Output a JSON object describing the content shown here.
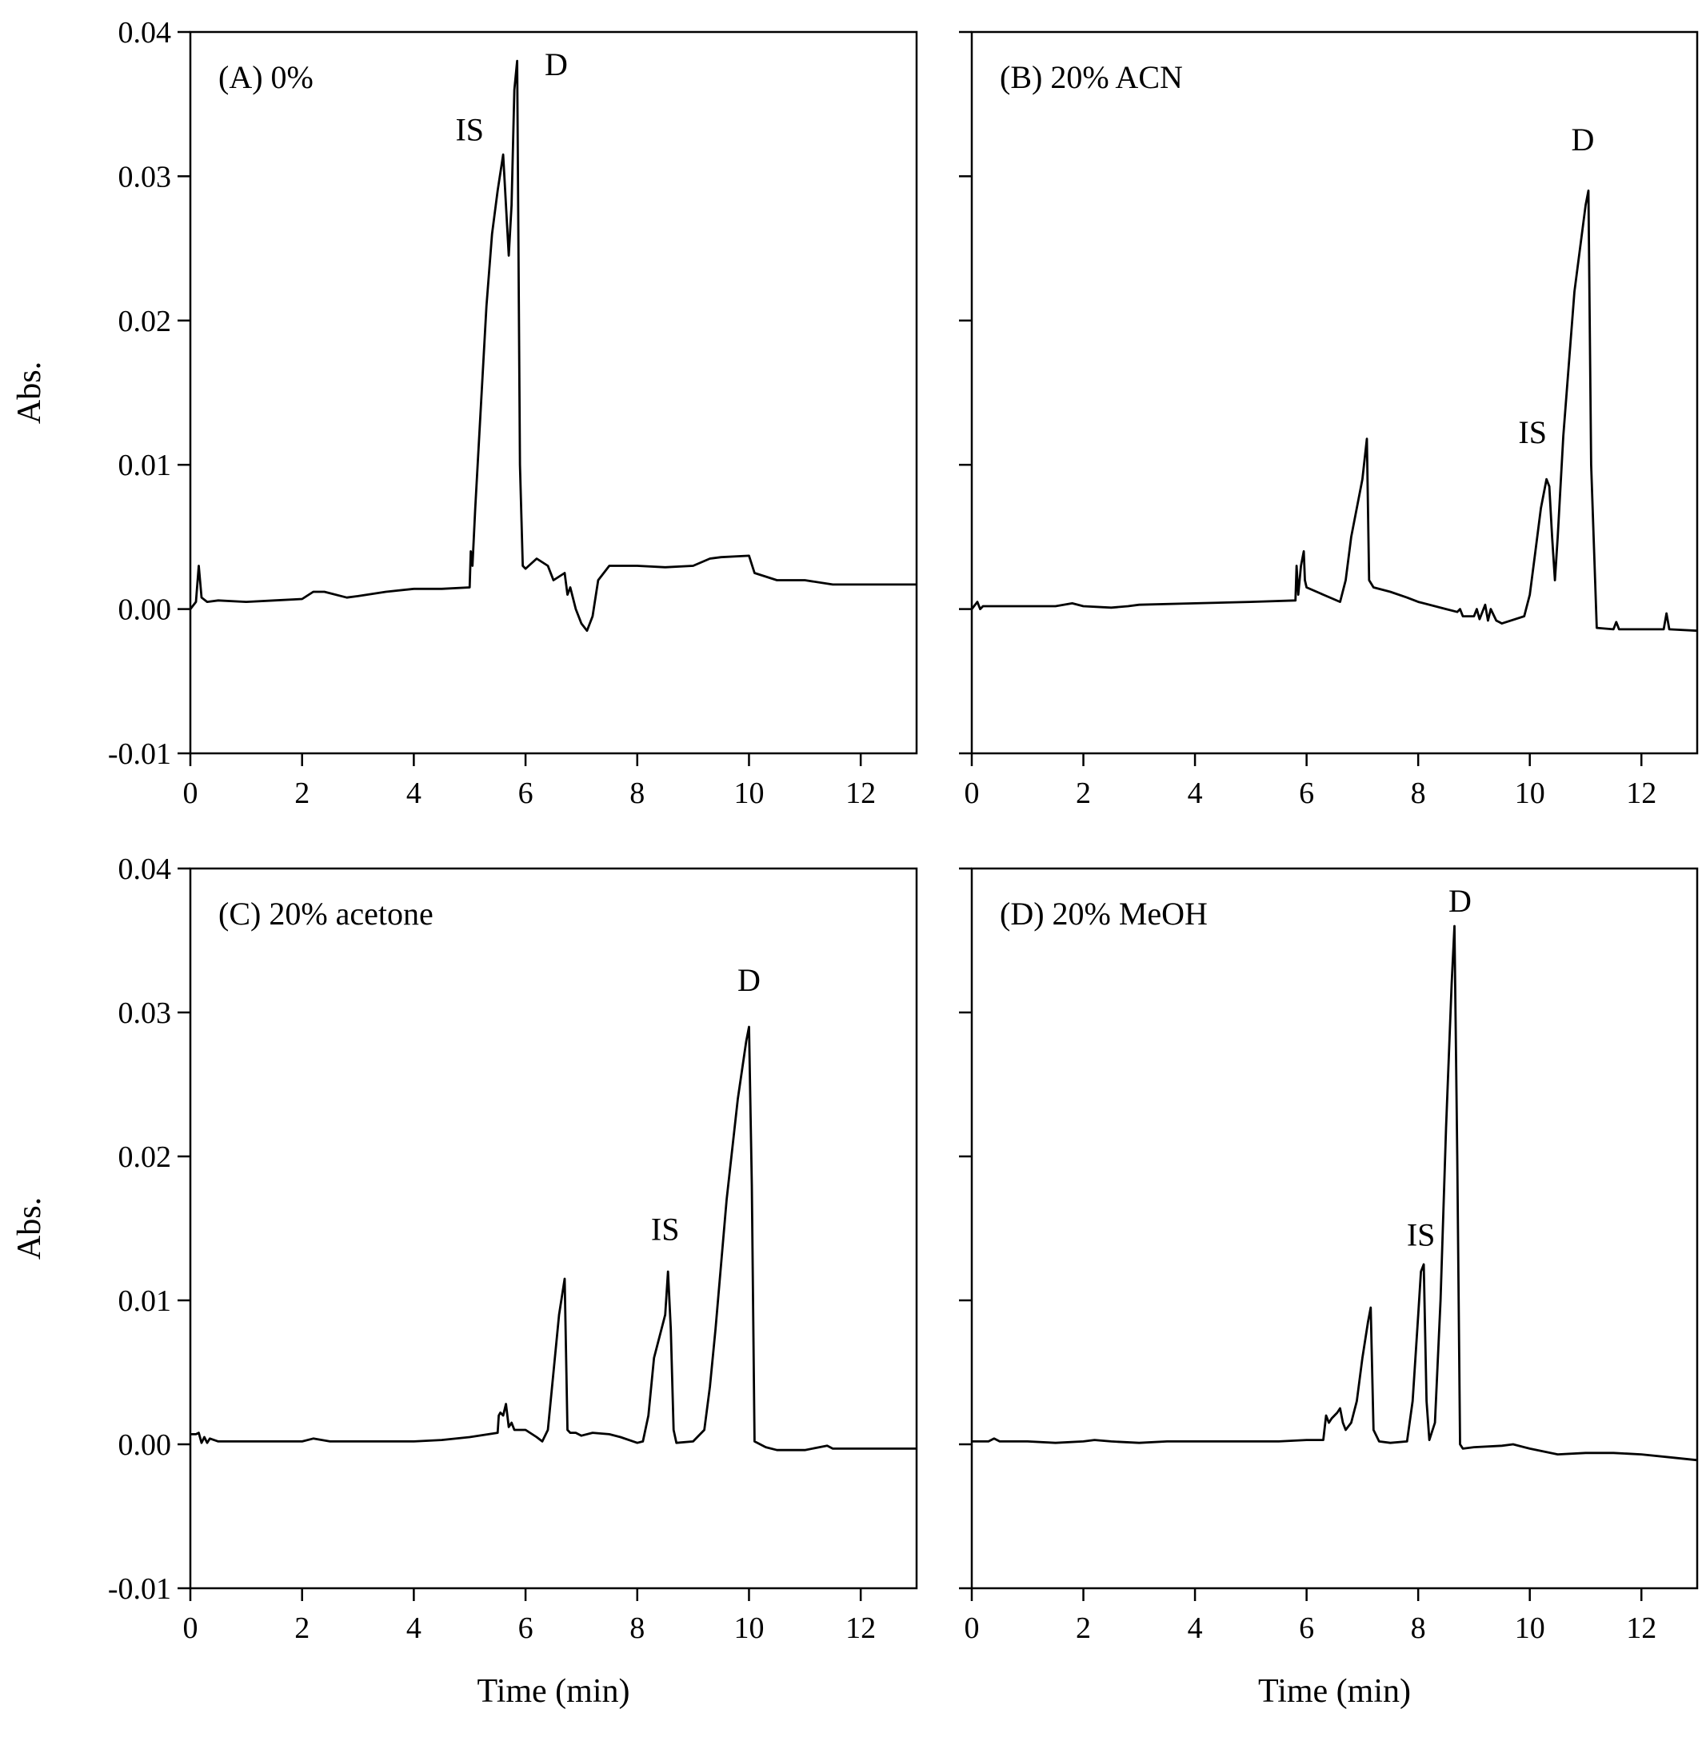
{
  "chart_data": [
    {
      "type": "line",
      "panel_label": "(A) 0%",
      "xlabel": "",
      "ylabel": "Abs.",
      "xlim": [
        0,
        13
      ],
      "ylim": [
        -0.01,
        0.04
      ],
      "xticks": [
        "0",
        "2",
        "4",
        "6",
        "8",
        "10",
        "12"
      ],
      "yticks": [
        "-0.01",
        "0.00",
        "0.01",
        "0.02",
        "0.03",
        "0.04"
      ],
      "show_y_tick_labels": true,
      "annotations": [
        {
          "text": "IS",
          "x": 5.0,
          "y": 0.0325
        },
        {
          "text": "D",
          "x": 6.55,
          "y": 0.037
        }
      ],
      "series": [
        {
          "x": [
            0,
            0.1,
            0.15,
            0.2,
            0.3,
            0.5,
            1,
            1.5,
            2,
            2.2,
            2.4,
            2.8,
            3,
            3.5,
            4,
            4.5,
            5,
            5.02,
            5.05,
            5.1,
            5.2,
            5.3,
            5.4,
            5.5,
            5.6,
            5.65,
            5.7,
            5.75,
            5.8,
            5.85,
            5.9,
            5.95,
            6.0,
            6.2,
            6.4,
            6.5,
            6.7,
            6.75,
            6.8,
            6.9,
            7.0,
            7.1,
            7.2,
            7.3,
            7.5,
            8,
            8.5,
            9,
            9.3,
            9.5,
            10,
            10.1,
            10.5,
            11,
            11.5,
            12,
            12.5,
            13
          ],
          "y": [
            0.0,
            0.0005,
            0.003,
            0.0008,
            0.0005,
            0.0006,
            0.0005,
            0.0006,
            0.0007,
            0.0012,
            0.0012,
            0.0008,
            0.0009,
            0.0012,
            0.0014,
            0.0014,
            0.0015,
            0.004,
            0.003,
            0.007,
            0.014,
            0.021,
            0.026,
            0.029,
            0.0315,
            0.028,
            0.0245,
            0.028,
            0.036,
            0.038,
            0.01,
            0.003,
            0.0028,
            0.0035,
            0.003,
            0.002,
            0.0025,
            0.001,
            0.0015,
            0.0,
            -0.001,
            -0.0015,
            -0.0005,
            0.002,
            0.003,
            0.003,
            0.0029,
            0.003,
            0.0035,
            0.0036,
            0.0037,
            0.0025,
            0.002,
            0.002,
            0.0017,
            0.0017,
            0.0017,
            0.0017
          ]
        }
      ]
    },
    {
      "type": "line",
      "panel_label": "(B) 20% ACN",
      "xlabel": "",
      "ylabel": "",
      "xlim": [
        0,
        13
      ],
      "ylim": [
        -0.01,
        0.04
      ],
      "xticks": [
        "0",
        "2",
        "4",
        "6",
        "8",
        "10",
        "12"
      ],
      "yticks": [],
      "show_y_tick_labels": false,
      "annotations": [
        {
          "text": "IS",
          "x": 10.05,
          "y": 0.0115
        },
        {
          "text": "D",
          "x": 10.95,
          "y": 0.0318
        }
      ],
      "series": [
        {
          "x": [
            0,
            0.1,
            0.15,
            0.2,
            0.5,
            1,
            1.5,
            1.8,
            2,
            2.5,
            2.8,
            3,
            4,
            5,
            5.8,
            5.82,
            5.85,
            5.9,
            5.95,
            5.97,
            6.0,
            6.3,
            6.6,
            6.7,
            6.8,
            7.0,
            7.08,
            7.12,
            7.2,
            7.5,
            7.8,
            8.0,
            8.5,
            8.7,
            8.75,
            8.8,
            9.0,
            9.05,
            9.1,
            9.2,
            9.25,
            9.3,
            9.4,
            9.45,
            9.5,
            9.9,
            10.0,
            10.1,
            10.2,
            10.3,
            10.35,
            10.4,
            10.45,
            10.5,
            10.6,
            10.8,
            11.0,
            11.05,
            11.1,
            11.2,
            11.5,
            11.55,
            11.6,
            12,
            12.4,
            12.45,
            12.5,
            13
          ],
          "y": [
            0.0,
            0.0005,
            0.0,
            0.0002,
            0.0002,
            0.0002,
            0.0002,
            0.0004,
            0.0002,
            0.0001,
            0.0002,
            0.0003,
            0.0004,
            0.0005,
            0.0006,
            0.003,
            0.001,
            0.003,
            0.004,
            0.002,
            0.0015,
            0.001,
            0.0005,
            0.002,
            0.005,
            0.009,
            0.0118,
            0.002,
            0.0015,
            0.0012,
            0.0008,
            0.0005,
            0.0,
            -0.0002,
            0.0,
            -0.0005,
            -0.0005,
            0.0,
            -0.0007,
            0.0003,
            -0.0008,
            0.0,
            -0.0008,
            -0.0009,
            -0.001,
            -0.0005,
            0.001,
            0.004,
            0.007,
            0.009,
            0.0085,
            0.005,
            0.002,
            0.005,
            0.012,
            0.022,
            0.028,
            0.029,
            0.01,
            -0.0013,
            -0.0014,
            -0.0009,
            -0.0014,
            -0.0014,
            -0.0014,
            -0.0003,
            -0.0014,
            -0.0015
          ]
        }
      ]
    },
    {
      "type": "line",
      "panel_label": "(C) 20% acetone",
      "xlabel": "Time (min)",
      "ylabel": "Abs.",
      "xlim": [
        0,
        13
      ],
      "ylim": [
        -0.01,
        0.04
      ],
      "xticks": [
        "0",
        "2",
        "4",
        "6",
        "8",
        "10",
        "12"
      ],
      "yticks": [
        "-0.01",
        "0.00",
        "0.01",
        "0.02",
        "0.03",
        "0.04"
      ],
      "show_y_tick_labels": true,
      "annotations": [
        {
          "text": "IS",
          "x": 8.5,
          "y": 0.0142
        },
        {
          "text": "D",
          "x": 10.0,
          "y": 0.0315
        }
      ],
      "series": [
        {
          "x": [
            0,
            0.1,
            0.15,
            0.2,
            0.25,
            0.3,
            0.35,
            0.5,
            1,
            1.5,
            2,
            2.2,
            2.5,
            3,
            3.5,
            4,
            4.5,
            5,
            5.5,
            5.52,
            5.55,
            5.6,
            5.65,
            5.7,
            5.75,
            5.8,
            6.0,
            6.2,
            6.3,
            6.4,
            6.5,
            6.6,
            6.7,
            6.75,
            6.8,
            6.9,
            7.0,
            7.2,
            7.5,
            7.7,
            8.0,
            8.1,
            8.2,
            8.3,
            8.4,
            8.5,
            8.55,
            8.6,
            8.65,
            8.7,
            9.0,
            9.2,
            9.3,
            9.4,
            9.6,
            9.8,
            9.95,
            10.0,
            10.05,
            10.1,
            10.3,
            10.5,
            11,
            11.4,
            11.5,
            12,
            12.5,
            13
          ],
          "y": [
            0.0007,
            0.0007,
            0.0008,
            0.0001,
            0.0005,
            0.0001,
            0.0004,
            0.0002,
            0.0002,
            0.0002,
            0.0002,
            0.0004,
            0.0002,
            0.0002,
            0.0002,
            0.0002,
            0.0003,
            0.0005,
            0.0008,
            0.002,
            0.0022,
            0.002,
            0.0028,
            0.0012,
            0.0015,
            0.001,
            0.001,
            0.0005,
            0.0002,
            0.001,
            0.005,
            0.009,
            0.0115,
            0.001,
            0.0008,
            0.0008,
            0.0006,
            0.0008,
            0.0007,
            0.0005,
            0.0001,
            0.0002,
            0.002,
            0.006,
            0.0075,
            0.009,
            0.012,
            0.008,
            0.001,
            0.0001,
            0.0002,
            0.001,
            0.004,
            0.008,
            0.017,
            0.024,
            0.028,
            0.029,
            0.018,
            0.0002,
            -0.0002,
            -0.0004,
            -0.0004,
            -0.0001,
            -0.0003,
            -0.0003,
            -0.0003,
            -0.0003
          ]
        }
      ]
    },
    {
      "type": "line",
      "panel_label": "(D) 20% MeOH",
      "xlabel": "Time (min)",
      "ylabel": "",
      "xlim": [
        0,
        13
      ],
      "ylim": [
        -0.01,
        0.04
      ],
      "xticks": [
        "0",
        "2",
        "4",
        "6",
        "8",
        "10",
        "12"
      ],
      "yticks": [],
      "show_y_tick_labels": false,
      "annotations": [
        {
          "text": "IS",
          "x": 8.05,
          "y": 0.0138
        },
        {
          "text": "D",
          "x": 8.75,
          "y": 0.037
        }
      ],
      "series": [
        {
          "x": [
            0,
            0.3,
            0.4,
            0.5,
            1,
            1.5,
            2,
            2.2,
            2.5,
            3,
            3.5,
            4,
            4.5,
            5,
            5.5,
            6.0,
            6.3,
            6.35,
            6.4,
            6.45,
            6.55,
            6.6,
            6.65,
            6.7,
            6.8,
            6.9,
            7.0,
            7.1,
            7.15,
            7.2,
            7.3,
            7.5,
            7.8,
            7.9,
            8.0,
            8.05,
            8.1,
            8.15,
            8.2,
            8.3,
            8.4,
            8.5,
            8.6,
            8.65,
            8.7,
            8.75,
            8.8,
            9.0,
            9.5,
            9.7,
            10,
            10.5,
            11,
            11.5,
            12,
            12.5,
            13
          ],
          "y": [
            0.0002,
            0.0002,
            0.0004,
            0.0002,
            0.0002,
            0.0001,
            0.0002,
            0.0003,
            0.0002,
            0.0001,
            0.0002,
            0.0002,
            0.0002,
            0.0002,
            0.0002,
            0.0003,
            0.0003,
            0.002,
            0.0015,
            0.0018,
            0.0022,
            0.0025,
            0.0015,
            0.001,
            0.0015,
            0.003,
            0.006,
            0.0085,
            0.0095,
            0.001,
            0.0002,
            0.0001,
            0.0002,
            0.003,
            0.009,
            0.012,
            0.0125,
            0.003,
            0.0003,
            0.0015,
            0.01,
            0.022,
            0.032,
            0.036,
            0.02,
            0.0,
            -0.0003,
            -0.0002,
            -0.0001,
            0.0,
            -0.0003,
            -0.0007,
            -0.0006,
            -0.0006,
            -0.0007,
            -0.0009,
            -0.0011
          ]
        }
      ]
    }
  ]
}
